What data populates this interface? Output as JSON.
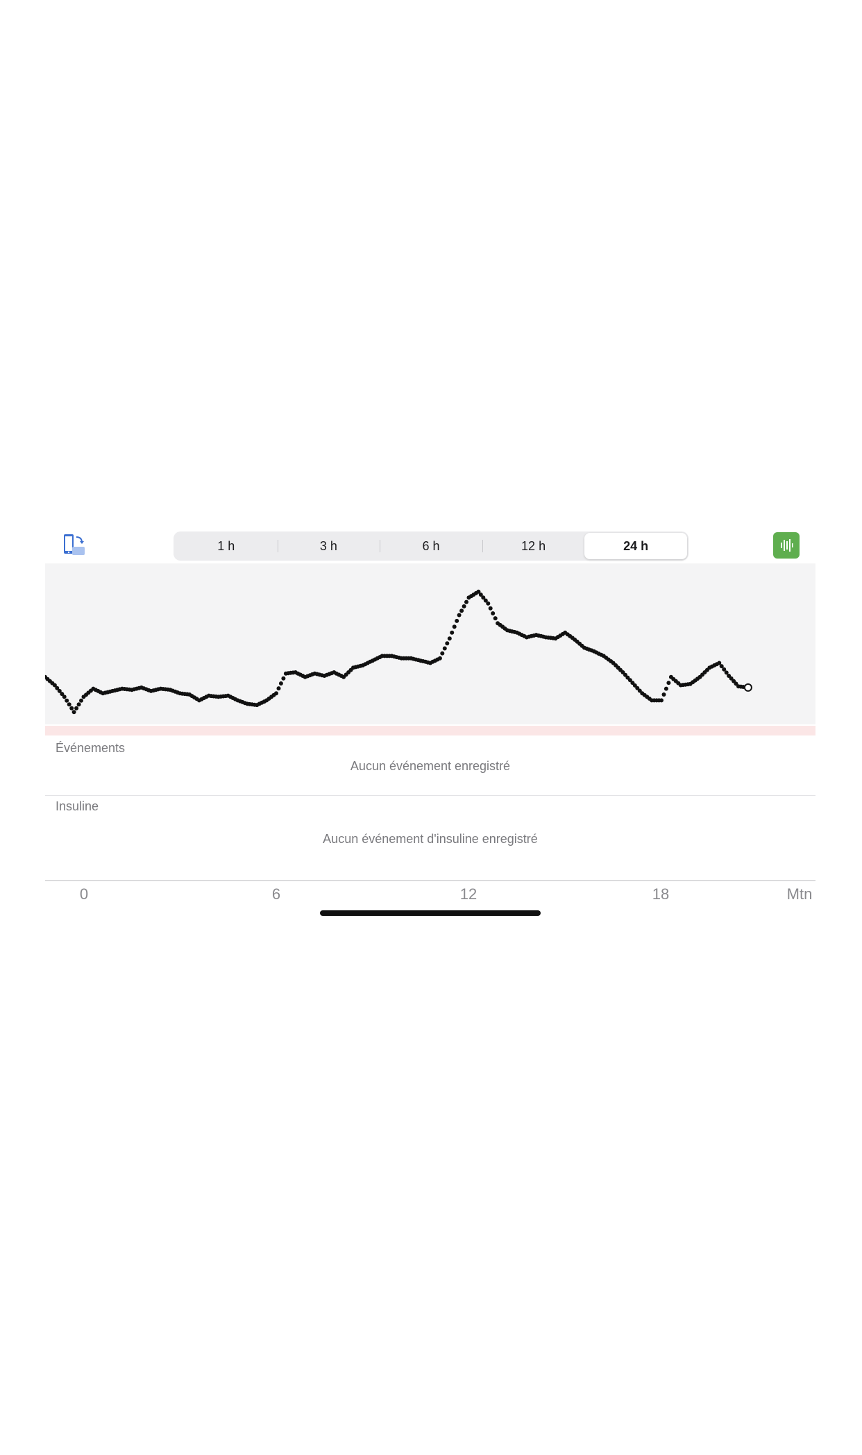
{
  "toolbar": {
    "rotate_icon": "phone-rotate-icon",
    "ranges": [
      "1 h",
      "3 h",
      "6 h",
      "12 h",
      "24 h"
    ],
    "selected_range": "24 h",
    "action_icon": "waveform-icon",
    "action_color": "#5fae4f"
  },
  "chart_data": {
    "type": "scatter",
    "series": [
      {
        "points": [
          [
            0.0,
            0.72
          ],
          [
            0.3,
            0.65
          ],
          [
            0.6,
            0.55
          ],
          [
            0.9,
            0.42
          ],
          [
            1.2,
            0.55
          ],
          [
            1.5,
            0.62
          ],
          [
            1.8,
            0.58
          ],
          [
            2.1,
            0.6
          ],
          [
            2.4,
            0.62
          ],
          [
            2.7,
            0.61
          ],
          [
            3.0,
            0.63
          ],
          [
            3.3,
            0.6
          ],
          [
            3.6,
            0.62
          ],
          [
            3.9,
            0.61
          ],
          [
            4.2,
            0.58
          ],
          [
            4.5,
            0.57
          ],
          [
            4.8,
            0.52
          ],
          [
            5.1,
            0.56
          ],
          [
            5.4,
            0.55
          ],
          [
            5.7,
            0.56
          ],
          [
            6.0,
            0.52
          ],
          [
            6.3,
            0.49
          ],
          [
            6.6,
            0.48
          ],
          [
            6.9,
            0.52
          ],
          [
            7.2,
            0.58
          ],
          [
            7.5,
            0.75
          ],
          [
            7.8,
            0.76
          ],
          [
            8.1,
            0.72
          ],
          [
            8.4,
            0.75
          ],
          [
            8.7,
            0.73
          ],
          [
            9.0,
            0.76
          ],
          [
            9.3,
            0.72
          ],
          [
            9.6,
            0.8
          ],
          [
            9.9,
            0.82
          ],
          [
            10.2,
            0.86
          ],
          [
            10.5,
            0.9
          ],
          [
            10.8,
            0.9
          ],
          [
            11.1,
            0.88
          ],
          [
            11.4,
            0.88
          ],
          [
            11.7,
            0.86
          ],
          [
            12.0,
            0.84
          ],
          [
            12.3,
            0.88
          ],
          [
            12.6,
            1.05
          ],
          [
            12.9,
            1.25
          ],
          [
            13.2,
            1.4
          ],
          [
            13.5,
            1.45
          ],
          [
            13.8,
            1.35
          ],
          [
            14.1,
            1.18
          ],
          [
            14.4,
            1.12
          ],
          [
            14.7,
            1.1
          ],
          [
            15.0,
            1.06
          ],
          [
            15.3,
            1.08
          ],
          [
            15.6,
            1.06
          ],
          [
            15.9,
            1.05
          ],
          [
            16.2,
            1.1
          ],
          [
            16.5,
            1.04
          ],
          [
            16.8,
            0.97
          ],
          [
            17.1,
            0.94
          ],
          [
            17.4,
            0.9
          ],
          [
            17.7,
            0.84
          ],
          [
            18.0,
            0.76
          ],
          [
            18.3,
            0.67
          ],
          [
            18.6,
            0.58
          ],
          [
            18.9,
            0.52
          ],
          [
            19.2,
            0.52
          ],
          [
            19.5,
            0.72
          ],
          [
            19.8,
            0.65
          ],
          [
            20.1,
            0.66
          ],
          [
            20.4,
            0.72
          ],
          [
            20.7,
            0.8
          ],
          [
            21.0,
            0.84
          ],
          [
            21.3,
            0.73
          ],
          [
            21.6,
            0.64
          ],
          [
            21.9,
            0.63
          ]
        ]
      }
    ],
    "x_range": [
      0,
      24
    ],
    "x_ticks": [
      "0",
      "6",
      "12",
      "18",
      "Mtn"
    ],
    "grid": false
  },
  "events": {
    "title": "Événements",
    "empty": "Aucun événement enregistré"
  },
  "insulin": {
    "title": "Insuline",
    "empty": "Aucun événement d'insuline enregistré"
  }
}
